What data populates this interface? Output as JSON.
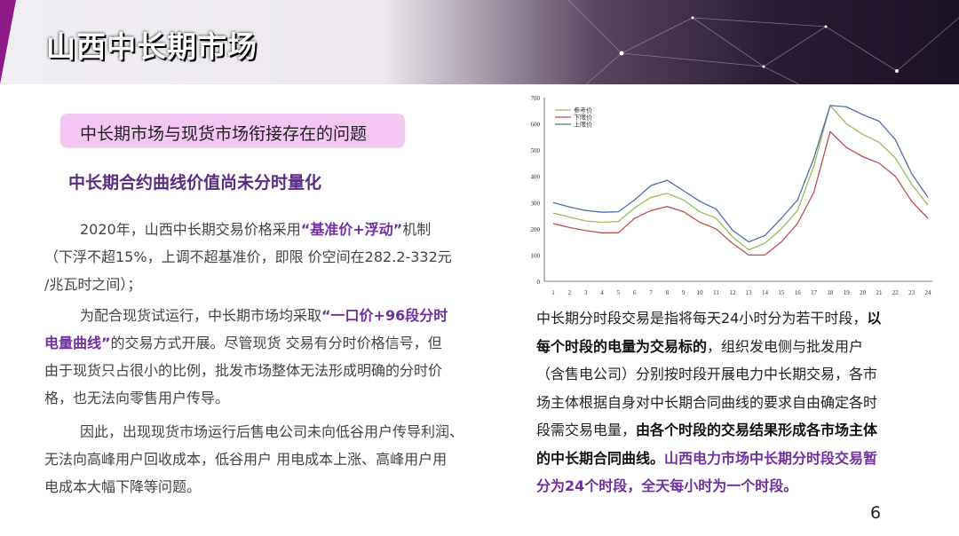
{
  "header": {
    "title": "山西中长期市场"
  },
  "pill_label": "中长期市场与现货市场衔接存在的问题",
  "subtitle": "中长期合约曲线价值尚未分时量化",
  "left": {
    "p1_l1_a": "2020年，山西中长期交易价格采用",
    "p1_l1_b": "“基准价+浮动”",
    "p1_l1_c": "机制",
    "p1_l2": "（下浮不超15%，上调不超基准价，即限 价空间在282.2-332元",
    "p1_l3": "/兆瓦时之间）；",
    "p2_l1_a": "为配合现货试运行，中长期市场均采取",
    "p2_l1_b": "“一口价+96段分时",
    "p2_l2_a": "电量曲线”",
    "p2_l2_b": "的交易方式开展。尽管现货 交易有分时价格信号，但",
    "p2_l3": "由于现货只占很小的比例，批发市场整体无法形成明确的分时价",
    "p2_l4": "格，也无法向零售用户传导。",
    "p3_l1": "因此，出现现货市场运行后售电公司未向低谷用户传导利润、",
    "p3_l2": "无法向高峰用户回收成本，低谷用户 用电成本上涨、高峰用户用",
    "p3_l3": "电成本大幅下降等问题。"
  },
  "right": {
    "l1_a": "中长期分时段交易是指将每天24小时分为若干时段，",
    "l1_b": "以",
    "l2_a": "每个时段的电量为交易标的",
    "l2_b": "，组织发电侧与批发用户",
    "l3": "（含售电公司）分别按时段开展电力中长期交易，各市",
    "l4": "场主体根据自身对中长期合同曲线的要求自由确定各时",
    "l5_a": "段需交易电量，",
    "l5_b": "由各个时段的交易结果形成各市场主体",
    "l6_a": "的中长期合同曲线。",
    "l6_b": "山西电力市场中长期分时段交易暂",
    "l7": "分为24个时段，全天每小时为一个时段。"
  },
  "page_number": "6",
  "chart_data": {
    "type": "line",
    "x": [
      1,
      2,
      3,
      4,
      5,
      6,
      7,
      8,
      9,
      10,
      11,
      12,
      13,
      14,
      15,
      16,
      17,
      18,
      19,
      20,
      21,
      22,
      23,
      24
    ],
    "ylim": [
      0,
      700
    ],
    "yticks": [
      0,
      100,
      200,
      300,
      400,
      500,
      600,
      700
    ],
    "grid": false,
    "legend_position": "top-left",
    "series": [
      {
        "name": "参考价",
        "color": "#9bbb59",
        "values": [
          260,
          245,
          230,
          225,
          228,
          280,
          320,
          335,
          310,
          265,
          240,
          170,
          120,
          145,
          200,
          270,
          440,
          670,
          600,
          560,
          530,
          470,
          370,
          290
        ]
      },
      {
        "name": "下限价",
        "color": "#c0504d",
        "values": [
          220,
          205,
          193,
          185,
          185,
          240,
          270,
          285,
          265,
          225,
          200,
          145,
          100,
          100,
          150,
          220,
          340,
          570,
          510,
          475,
          450,
          400,
          305,
          240
        ]
      },
      {
        "name": "上限价",
        "color": "#4f6fa8",
        "values": [
          300,
          283,
          270,
          263,
          265,
          310,
          365,
          385,
          345,
          305,
          275,
          195,
          150,
          175,
          240,
          310,
          470,
          670,
          665,
          635,
          610,
          540,
          410,
          320
        ]
      }
    ]
  }
}
